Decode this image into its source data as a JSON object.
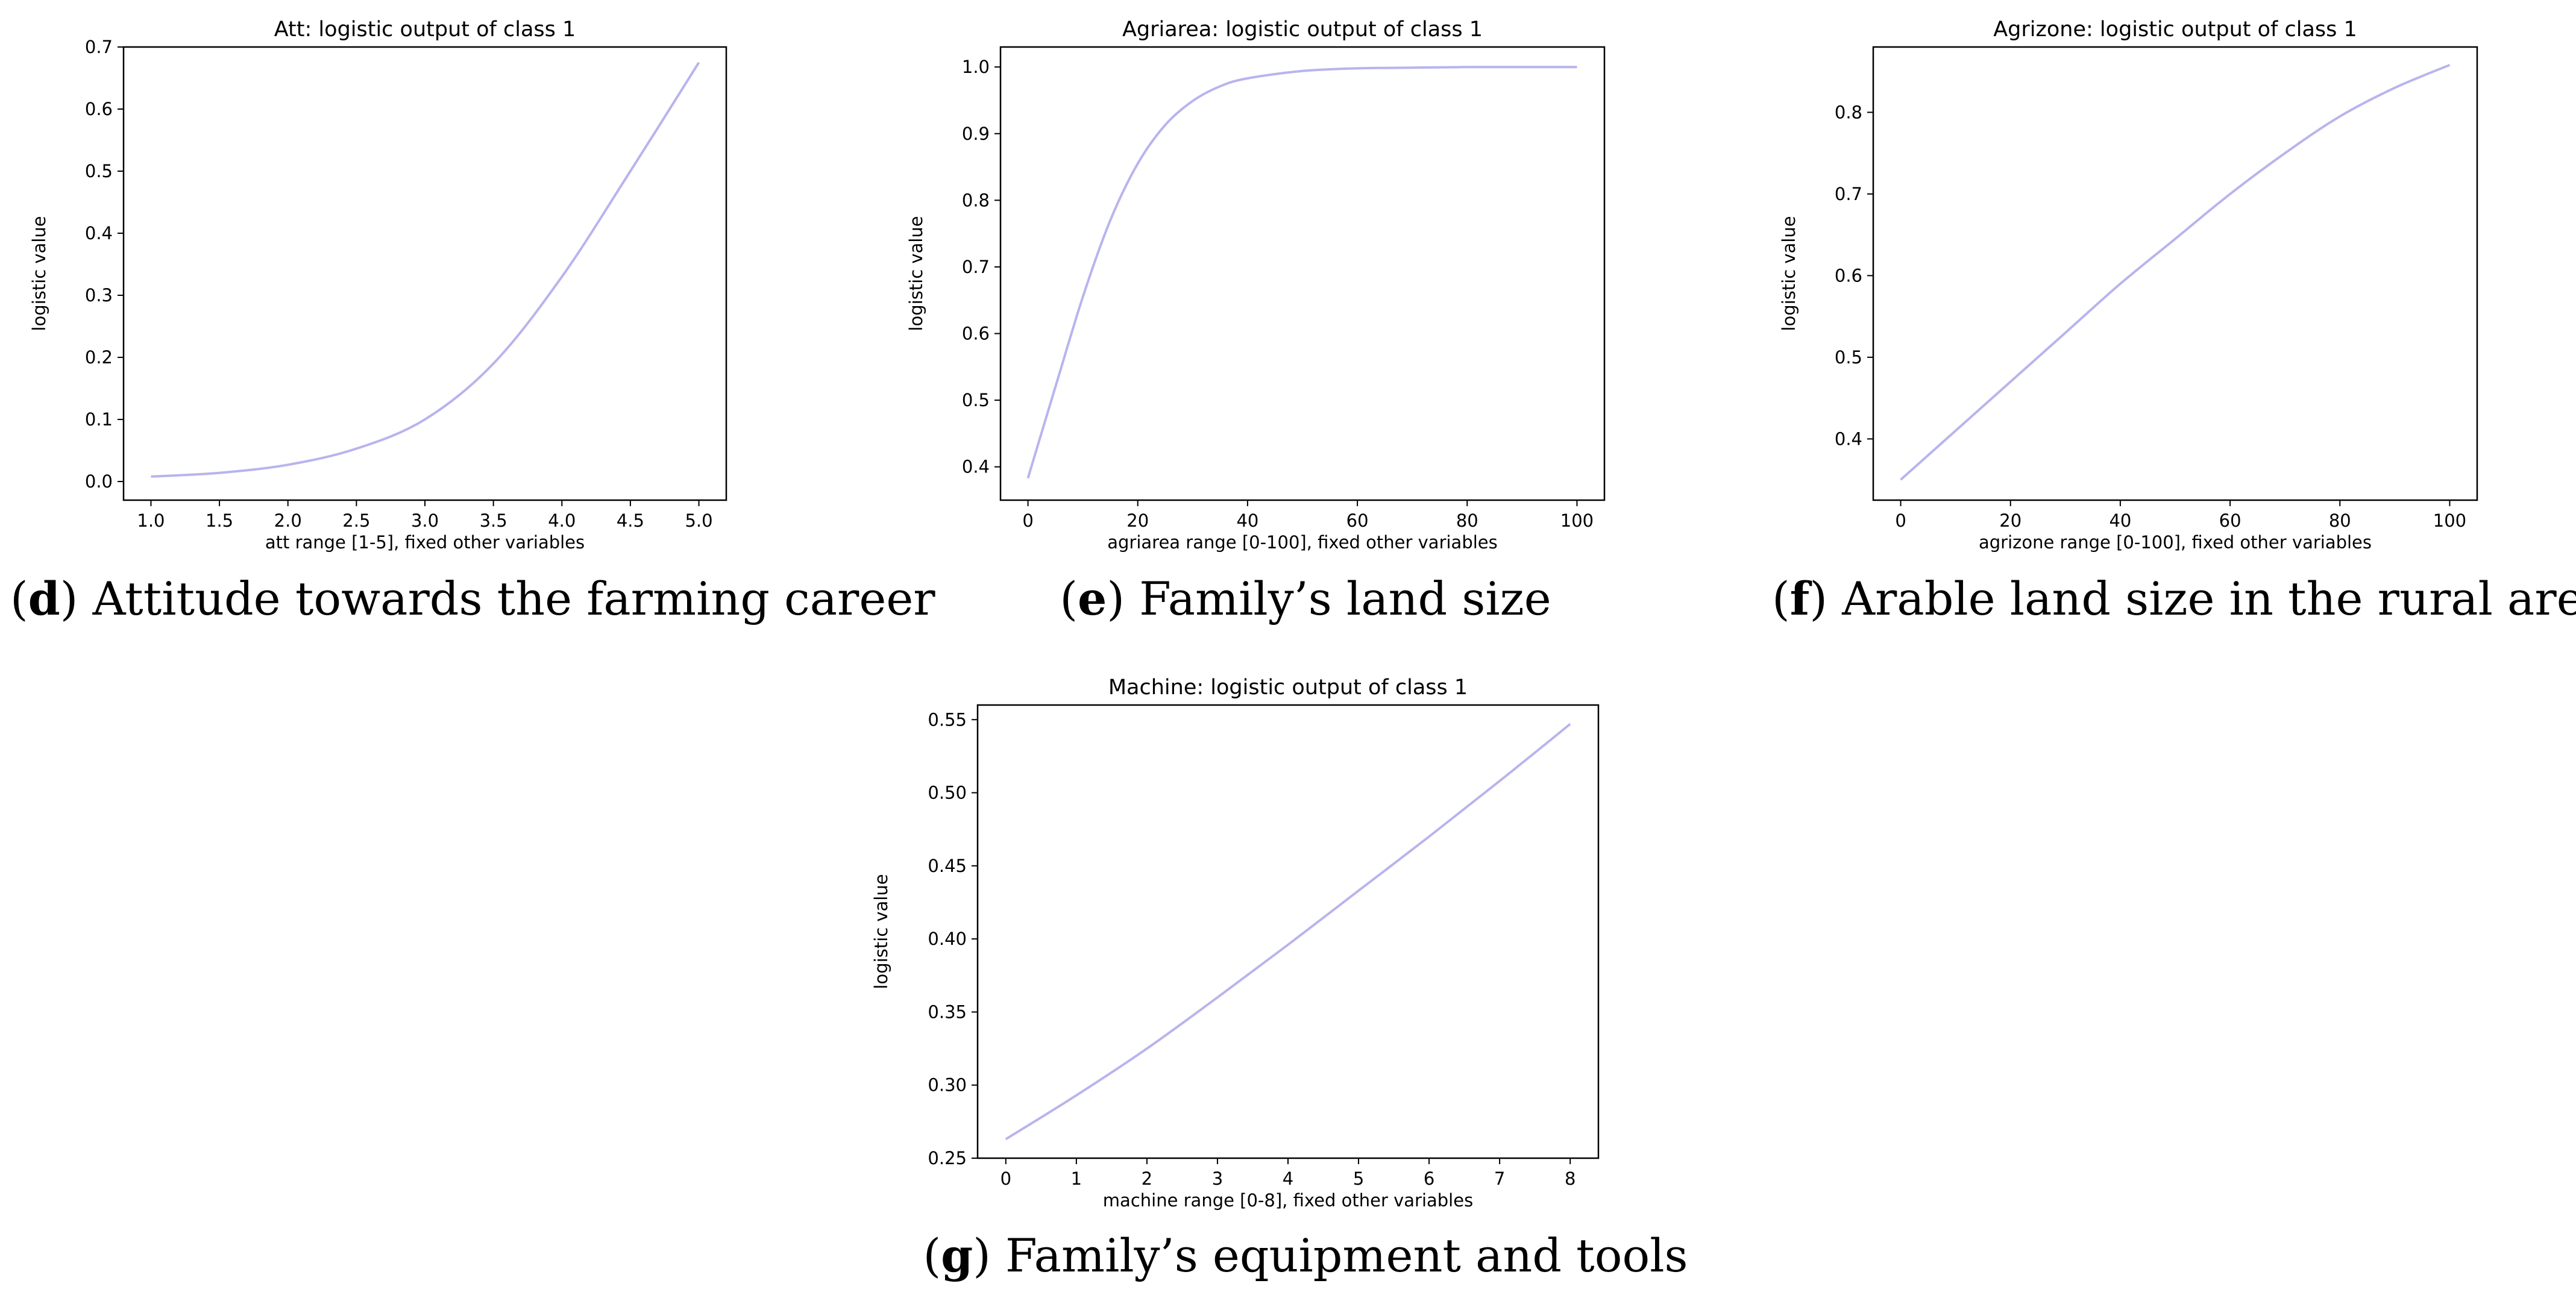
{
  "chart_data": [
    {
      "type": "line",
      "title": "Att: logistic output of class 1",
      "xlabel": "att range [1-5], fixed other variables",
      "ylabel": "logistic value",
      "xlim": [
        0.8,
        5.2
      ],
      "ylim": [
        -0.03,
        0.7
      ],
      "x_ticks": [
        "1.0",
        "1.5",
        "2.0",
        "2.5",
        "3.0",
        "3.5",
        "4.0",
        "4.5",
        "5.0"
      ],
      "y_ticks": [
        "0.0",
        "0.1",
        "0.2",
        "0.3",
        "0.4",
        "0.5",
        "0.6",
        "0.7"
      ],
      "series": [
        {
          "color": "#b8b4ee",
          "x": [
            1.0,
            1.5,
            2.0,
            2.5,
            3.0,
            3.5,
            4.0,
            4.5,
            5.0
          ],
          "y": [
            0.008,
            0.014,
            0.027,
            0.053,
            0.1,
            0.19,
            0.33,
            0.5,
            0.675
          ]
        }
      ],
      "caption_letter": "d",
      "caption_text": ") Attitude towards the farming career"
    },
    {
      "type": "line",
      "title": "Agriarea: logistic output of class 1",
      "xlabel": "agriarea range [0-100], fixed other variables",
      "ylabel": "logistic value",
      "xlim": [
        -5,
        105
      ],
      "ylim": [
        0.35,
        1.03
      ],
      "x_ticks": [
        "0",
        "20",
        "40",
        "60",
        "80",
        "100"
      ],
      "y_ticks": [
        "0.4",
        "0.5",
        "0.6",
        "0.7",
        "0.8",
        "0.9",
        "1.0"
      ],
      "series": [
        {
          "color": "#b8b4ee",
          "x": [
            0,
            5,
            10,
            15,
            20,
            25,
            30,
            35,
            40,
            50,
            60,
            70,
            80,
            90,
            100
          ],
          "y": [
            0.383,
            0.52,
            0.655,
            0.77,
            0.855,
            0.913,
            0.949,
            0.971,
            0.983,
            0.994,
            0.998,
            0.999,
            1.0,
            1.0,
            1.0
          ]
        }
      ],
      "caption_letter": "e",
      "caption_text": ") Family’s land size"
    },
    {
      "type": "line",
      "title": "Agrizone: logistic output of class 1",
      "xlabel": "agrizone range [0-100], fixed other variables",
      "ylabel": "logistic value",
      "xlim": [
        -5,
        105
      ],
      "ylim": [
        0.325,
        0.88
      ],
      "x_ticks": [
        "0",
        "20",
        "40",
        "60",
        "80",
        "100"
      ],
      "y_ticks": [
        "0.4",
        "0.5",
        "0.6",
        "0.7",
        "0.8"
      ],
      "series": [
        {
          "color": "#b8b4ee",
          "x": [
            0,
            10,
            20,
            30,
            40,
            50,
            60,
            70,
            80,
            90,
            100
          ],
          "y": [
            0.35,
            0.41,
            0.47,
            0.53,
            0.59,
            0.645,
            0.7,
            0.75,
            0.795,
            0.83,
            0.858
          ]
        }
      ],
      "caption_letter": "f",
      "caption_text": ") Arable land size in the rural area"
    },
    {
      "type": "line",
      "title": "Machine: logistic output of class 1",
      "xlabel": "machine range [0-8], fixed other variables",
      "ylabel": "logistic value",
      "xlim": [
        -0.4,
        8.4
      ],
      "ylim": [
        0.25,
        0.56
      ],
      "x_ticks": [
        "0",
        "1",
        "2",
        "3",
        "4",
        "5",
        "6",
        "7",
        "8"
      ],
      "y_ticks": [
        "0.25",
        "0.30",
        "0.35",
        "0.40",
        "0.45",
        "0.50",
        "0.55"
      ],
      "series": [
        {
          "color": "#b8b4ee",
          "x": [
            0,
            1,
            2,
            3,
            4,
            5,
            6,
            7,
            8
          ],
          "y": [
            0.263,
            0.293,
            0.325,
            0.36,
            0.396,
            0.433,
            0.47,
            0.508,
            0.547
          ]
        }
      ],
      "caption_letter": "g",
      "caption_text": ") Family’s equipment and tools"
    }
  ]
}
